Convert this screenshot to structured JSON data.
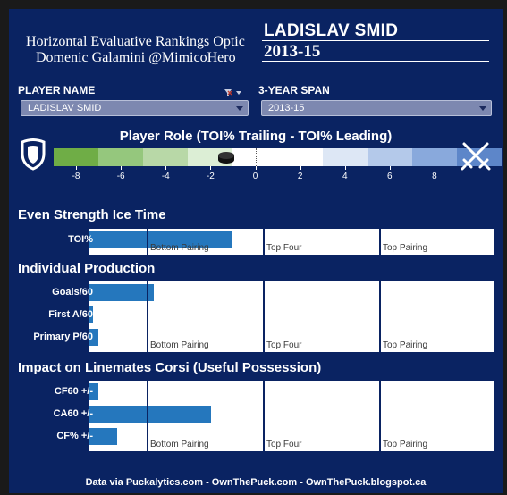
{
  "header": {
    "line1": "Horizontal Evaluative Rankings Optic",
    "line2": "Domenic Galamini @MimicoHero",
    "player": "LADISLAV SMID",
    "season": "2013-15"
  },
  "filters": {
    "player_label": "PLAYER NAME",
    "player_value": "LADISLAV SMID",
    "span_label": "3-YEAR SPAN",
    "span_value": "2013-15"
  },
  "role": {
    "title": "Player Role (TOI% Trailing - TOI% Leading)",
    "ticks": [
      "-8",
      "-6",
      "-4",
      "-2",
      "0",
      "2",
      "4",
      "6",
      "8"
    ],
    "marker_value": -1.3,
    "shield_icon": "shield-icon",
    "swords_icon": "crossed-swords-icon",
    "puck_icon": "puck-icon",
    "colors_negative": [
      "#6fad46",
      "#95c77d",
      "#b8d8a7",
      "#dceed5"
    ],
    "colors_positive": [
      "#dde7f5",
      "#b4c9ea",
      "#89a9dc",
      "#5d86c9"
    ]
  },
  "tier_labels": [
    "Bottom Pairing",
    "Top Four",
    "Top Pairing"
  ],
  "sections": [
    {
      "title": "Even Strength Ice Time",
      "rows": [
        {
          "label": "TOI%",
          "fill": 0.35
        }
      ]
    },
    {
      "title": "Individual Production",
      "rows": [
        {
          "label": "Goals/60",
          "fill": 0.16
        },
        {
          "label": "First A/60",
          "fill": 0.008
        },
        {
          "label": "Primary P/60",
          "fill": 0.023
        }
      ]
    },
    {
      "title": "Impact on Linemates Corsi (Useful Possession)",
      "rows": [
        {
          "label": "CF60 +/-",
          "fill": 0.023
        },
        {
          "label": "CA60 +/-",
          "fill": 0.3
        },
        {
          "label": "CF% +/-",
          "fill": 0.068
        }
      ]
    }
  ],
  "footer": "Data via Puckalytics.com - OwnThePuck.com - OwnThePuck.blogspot.ca"
}
